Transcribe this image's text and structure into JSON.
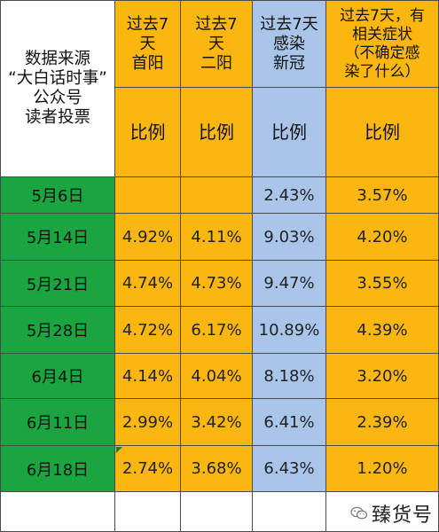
{
  "header": {
    "source_label": "数据来源\n“大白话时事”\n公众号\n读者投票",
    "columns": [
      {
        "title": "过去7\n天\n首阳",
        "unit": "比例",
        "color": "#fbb70f"
      },
      {
        "title": "过去7\n天\n二阳",
        "unit": "比例",
        "color": "#fbb70f"
      },
      {
        "title": "过去7天\n感染\n新冠",
        "unit": "比例",
        "color": "#a9c6ea"
      },
      {
        "title": "过去7天，有\n相关症状\n（不确定感\n染了什么）",
        "unit": "比例",
        "color": "#fbb70f"
      }
    ]
  },
  "rows": [
    {
      "date": "5月6日",
      "first": "",
      "second": "",
      "infected": "2.43%",
      "symptoms": "3.57%"
    },
    {
      "date": "5月14日",
      "first": "4.92%",
      "second": "4.11%",
      "infected": "9.03%",
      "symptoms": "4.20%"
    },
    {
      "date": "5月21日",
      "first": "4.74%",
      "second": "4.73%",
      "infected": "9.47%",
      "symptoms": "3.55%"
    },
    {
      "date": "5月28日",
      "first": "4.72%",
      "second": "6.17%",
      "infected": "10.89%",
      "symptoms": "4.39%"
    },
    {
      "date": "6月4日",
      "first": "4.14%",
      "second": "4.04%",
      "infected": "8.18%",
      "symptoms": "3.20%"
    },
    {
      "date": "6月11日",
      "first": "2.99%",
      "second": "3.42%",
      "infected": "6.41%",
      "symptoms": "2.39%"
    },
    {
      "date": "6月18日",
      "first": "2.74%",
      "second": "3.68%",
      "infected": "6.43%",
      "symptoms": "1.20%"
    }
  ],
  "watermark": {
    "text": "臻货号",
    "icon": "wechat-icon"
  },
  "colors": {
    "date_fill": "#1aa541",
    "orange_fill": "#fbb70f",
    "blue_fill": "#a9c6ea"
  }
}
